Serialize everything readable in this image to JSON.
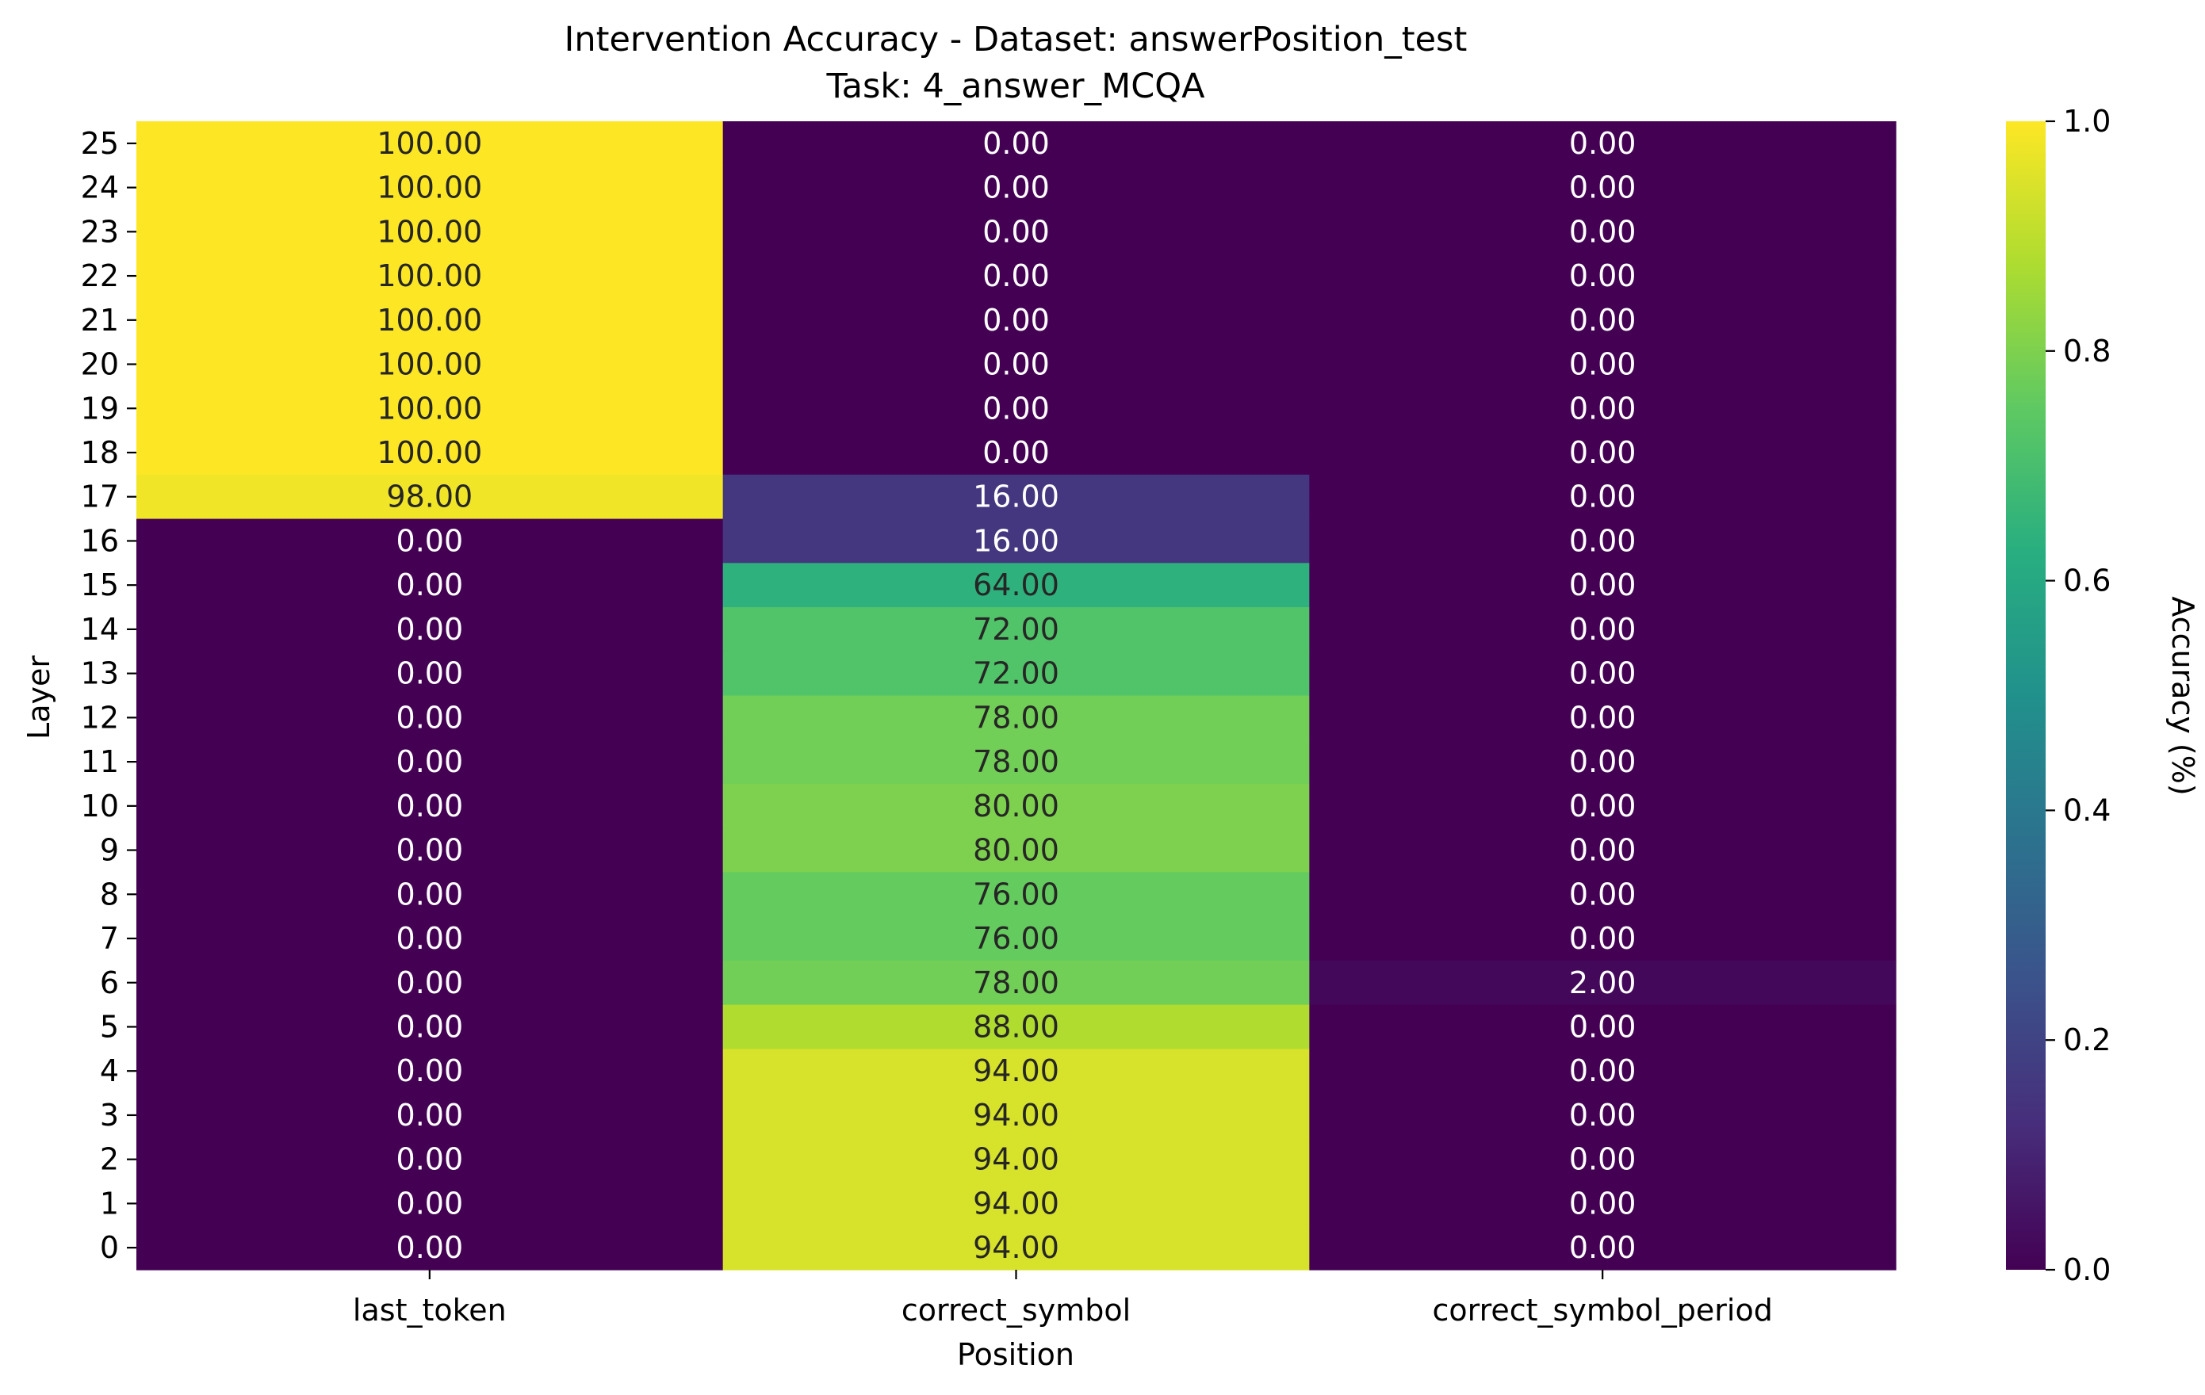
{
  "chart_data": {
    "type": "heatmap",
    "title": "Intervention Accuracy - Dataset: answerPosition_test",
    "subtitle": "Task: 4_answer_MCQA",
    "xlabel": "Position",
    "ylabel": "Layer",
    "columns": [
      "last_token",
      "correct_symbol",
      "correct_symbol_period"
    ],
    "rows": [
      "25",
      "24",
      "23",
      "22",
      "21",
      "20",
      "19",
      "18",
      "17",
      "16",
      "15",
      "14",
      "13",
      "12",
      "11",
      "10",
      "9",
      "8",
      "7",
      "6",
      "5",
      "4",
      "3",
      "2",
      "1",
      "0"
    ],
    "values": [
      [
        100,
        0,
        0
      ],
      [
        100,
        0,
        0
      ],
      [
        100,
        0,
        0
      ],
      [
        100,
        0,
        0
      ],
      [
        100,
        0,
        0
      ],
      [
        100,
        0,
        0
      ],
      [
        100,
        0,
        0
      ],
      [
        100,
        0,
        0
      ],
      [
        98,
        16,
        0
      ],
      [
        0,
        16,
        0
      ],
      [
        0,
        64,
        0
      ],
      [
        0,
        72,
        0
      ],
      [
        0,
        72,
        0
      ],
      [
        0,
        78,
        0
      ],
      [
        0,
        78,
        0
      ],
      [
        0,
        80,
        0
      ],
      [
        0,
        80,
        0
      ],
      [
        0,
        76,
        0
      ],
      [
        0,
        76,
        0
      ],
      [
        0,
        78,
        2
      ],
      [
        0,
        88,
        0
      ],
      [
        0,
        94,
        0
      ],
      [
        0,
        94,
        0
      ],
      [
        0,
        94,
        0
      ],
      [
        0,
        94,
        0
      ],
      [
        0,
        94,
        0
      ]
    ],
    "value_format": "2 decimals",
    "colormap": "viridis",
    "colorbar": {
      "label": "Accuracy (%)",
      "range": [
        0.0,
        1.0
      ],
      "ticks": [
        "0.0",
        "0.2",
        "0.4",
        "0.6",
        "0.8",
        "1.0"
      ]
    },
    "legend": "none",
    "grid": false
  }
}
